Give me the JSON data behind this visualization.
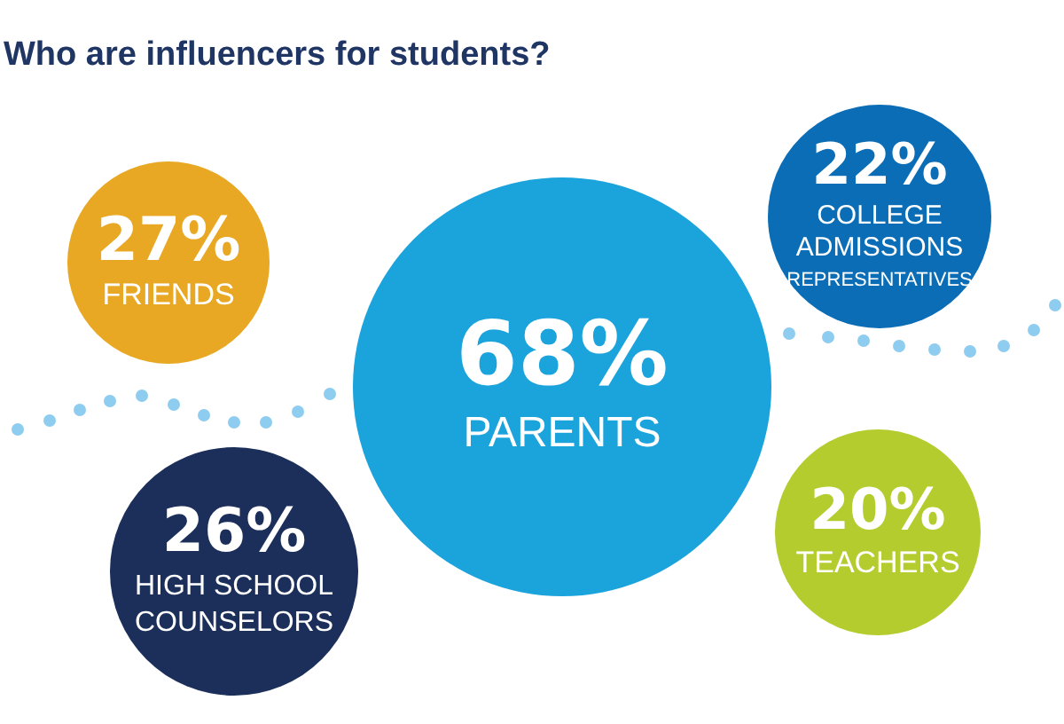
{
  "chart_data": {
    "type": "other",
    "title": "Who are influencers for students?",
    "categories": [
      "FRIENDS",
      "PARENTS",
      "HIGH SCHOOL\nCOUNSELORS",
      "COLLEGE\nADMISSIONS\nREPRESENTATIVES",
      "TEACHERS"
    ],
    "values": [
      27,
      68,
      26,
      22,
      20
    ],
    "value_labels": [
      "27%",
      "68%",
      "26%",
      "22%",
      "20%"
    ],
    "colors": [
      "#e8a823",
      "#1ba3dc",
      "#1b2f5a",
      "#0a6db5",
      "#b5cc2e"
    ]
  }
}
